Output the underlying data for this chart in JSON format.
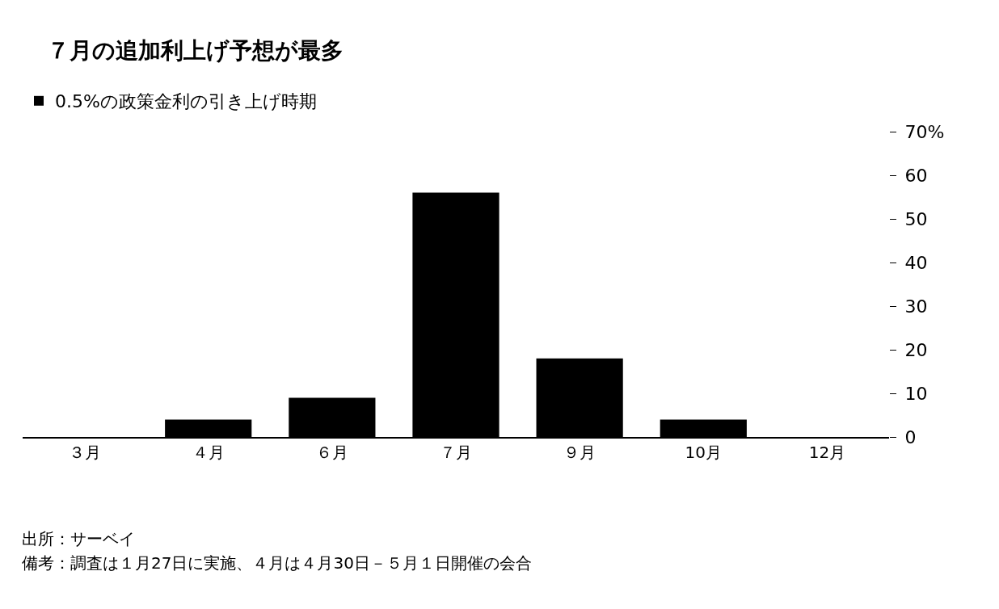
{
  "chart_data": {
    "type": "bar",
    "title": "７月の追加利上げ予想が最多",
    "categories": [
      "３月",
      "４月",
      "６月",
      "７月",
      "９月",
      "10月",
      "12月"
    ],
    "series": [
      {
        "name": "0.5%の政策金利の引き上げ時期",
        "color": "#000000",
        "values": [
          0,
          4,
          9,
          56,
          18,
          4,
          0
        ]
      }
    ],
    "ylim": [
      0,
      70
    ],
    "yticks": [
      0,
      10,
      20,
      30,
      40,
      50,
      60,
      {
        "value": 70,
        "label": "70%"
      }
    ],
    "grid": false,
    "legend": "top left",
    "annotations": [
      "出所：サーベイ",
      "備考：調査は１月27日に実施、４月は４月30日－５月１日開催の会合"
    ]
  }
}
